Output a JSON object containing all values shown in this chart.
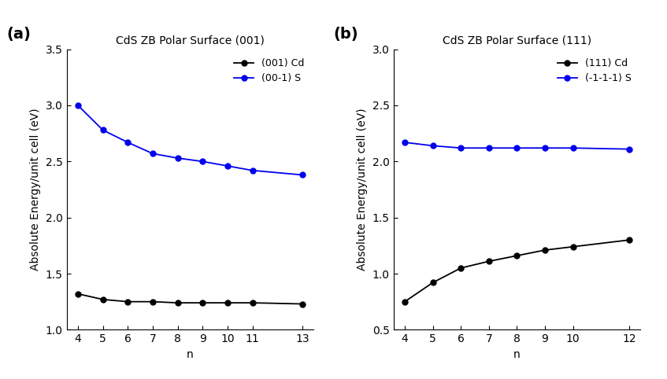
{
  "panel_a": {
    "title": "CdS ZB Polar Surface (001)",
    "xlabel": "n",
    "ylabel": "Absolute Energy/unit cell (eV)",
    "ylim": [
      1.0,
      3.5
    ],
    "yticks": [
      1.0,
      1.5,
      2.0,
      2.5,
      3.0,
      3.5
    ],
    "x": [
      4,
      5,
      6,
      7,
      8,
      9,
      10,
      11,
      13
    ],
    "black_label": "(001) Cd",
    "black_y": [
      1.32,
      1.27,
      1.25,
      1.25,
      1.24,
      1.24,
      1.24,
      1.24,
      1.23
    ],
    "blue_label": "(00-1) S",
    "blue_y": [
      3.0,
      2.78,
      2.67,
      2.57,
      2.53,
      2.5,
      2.46,
      2.42,
      2.38
    ]
  },
  "panel_b": {
    "title": "CdS ZB Polar Surface (111)",
    "xlabel": "n",
    "ylabel": "Absolute Energy/unit cell (eV)",
    "ylim": [
      0.5,
      3.0
    ],
    "yticks": [
      0.5,
      1.0,
      1.5,
      2.0,
      2.5,
      3.0
    ],
    "x": [
      4,
      5,
      6,
      7,
      8,
      9,
      10,
      12
    ],
    "black_label": "(111) Cd",
    "black_y": [
      0.75,
      0.92,
      1.05,
      1.11,
      1.16,
      1.21,
      1.24,
      1.3
    ],
    "blue_label": "(-1-1-1) S",
    "blue_y": [
      2.17,
      2.14,
      2.12,
      2.12,
      2.12,
      2.12,
      2.12,
      2.11
    ]
  },
  "black_color": "#000000",
  "blue_color": "#0000ee",
  "marker": "o",
  "markersize": 5,
  "linewidth": 1.3,
  "label_fontsize": 10,
  "tick_fontsize": 10,
  "title_fontsize": 10,
  "legend_fontsize": 9,
  "panel_a_label": "(a)",
  "panel_b_label": "(b)"
}
